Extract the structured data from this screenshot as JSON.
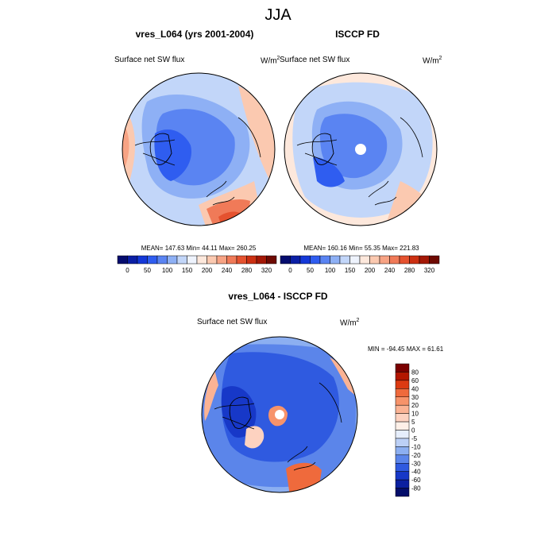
{
  "page": {
    "title": "JJA"
  },
  "chart_data": [
    {
      "type": "heatmap",
      "projection": "north-polar-stereographic",
      "title": "vres_L064 (yrs 2001-2004)",
      "left_label": "Surface net SW flux",
      "right_label": "W/m",
      "units_sup": "2",
      "stats_text": "MEAN= 147.63  Min=  44.11  Max= 260.25",
      "stats": {
        "mean": 147.63,
        "min": 44.11,
        "max": 260.25
      },
      "colorbar": {
        "orientation": "horizontal",
        "levels": [
          0,
          25,
          50,
          75,
          100,
          125,
          150,
          175,
          200,
          220,
          240,
          260,
          280,
          300,
          320
        ],
        "tick_labels": [
          "0",
          "50",
          "100",
          "150",
          "200",
          "240",
          "280",
          "320"
        ],
        "colors": [
          "#050c6e",
          "#0b1fa5",
          "#1438d8",
          "#2f5df0",
          "#5a84f2",
          "#8eb0f5",
          "#c2d6f9",
          "#eef3fd",
          "#fde8dc",
          "#fbc9b0",
          "#f7a384",
          "#f07a58",
          "#e5522f",
          "#cc3012",
          "#a41806",
          "#6e0a02"
        ]
      }
    },
    {
      "type": "heatmap",
      "projection": "north-polar-stereographic",
      "title": "ISCCP FD",
      "left_label": "Surface net SW flux",
      "right_label": "W/m",
      "units_sup": "2",
      "stats_text": "MEAN= 160.16  Min=  55.35  Max= 221.83",
      "stats": {
        "mean": 160.16,
        "min": 55.35,
        "max": 221.83
      },
      "colorbar": {
        "orientation": "horizontal",
        "levels": [
          0,
          25,
          50,
          75,
          100,
          125,
          150,
          175,
          200,
          220,
          240,
          260,
          280,
          300,
          320
        ],
        "tick_labels": [
          "0",
          "50",
          "100",
          "150",
          "200",
          "240",
          "280",
          "320"
        ],
        "colors": [
          "#050c6e",
          "#0b1fa5",
          "#1438d8",
          "#2f5df0",
          "#5a84f2",
          "#8eb0f5",
          "#c2d6f9",
          "#eef3fd",
          "#fde8dc",
          "#fbc9b0",
          "#f7a384",
          "#f07a58",
          "#e5522f",
          "#cc3012",
          "#a41806",
          "#6e0a02"
        ]
      }
    },
    {
      "type": "heatmap",
      "projection": "north-polar-stereographic",
      "title": "vres_L064 - ISCCP FD",
      "left_label": "Surface net SW flux",
      "right_label": "W/m",
      "units_sup": "2",
      "stats_text": "MIN = -94.45 MAX =  61.61",
      "stats": {
        "min": -94.45,
        "max": 61.61
      },
      "colorbar": {
        "orientation": "vertical",
        "levels": [
          80,
          60,
          40,
          30,
          20,
          10,
          5,
          0,
          -5,
          -10,
          -20,
          -30,
          -40,
          -60,
          -80
        ],
        "tick_labels": [
          "80",
          "60",
          "40",
          "30",
          "20",
          "10",
          "5",
          "0",
          "-5",
          "-10",
          "-20",
          "-30",
          "-40",
          "-60",
          "-80"
        ],
        "colors": [
          "#7a0000",
          "#b31600",
          "#dc3a12",
          "#ef6a3c",
          "#f7936a",
          "#fbb394",
          "#fdd2c0",
          "#fef0e8",
          "#e6eefc",
          "#bcd0f6",
          "#8caff1",
          "#5b85ea",
          "#2f5ae0",
          "#1738c8",
          "#0b20a0",
          "#040e6a"
        ]
      }
    }
  ]
}
